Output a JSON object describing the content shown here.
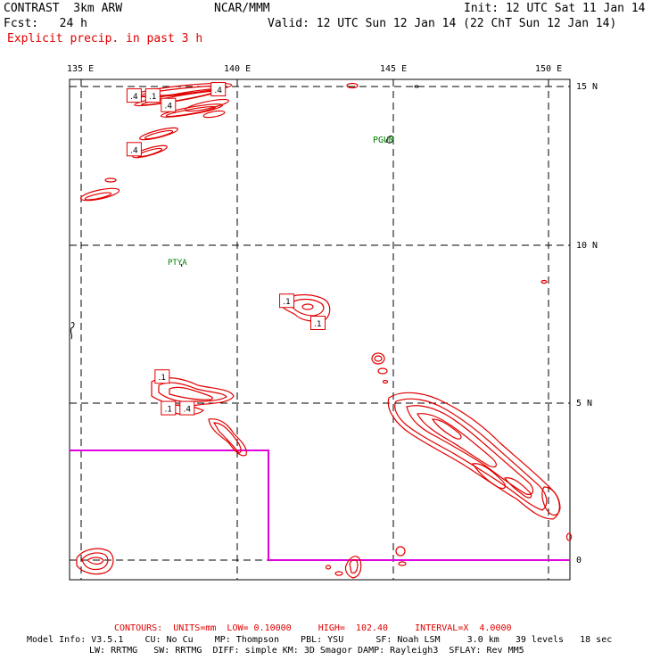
{
  "header": {
    "title": "CONTRAST  3km ARW",
    "source": "NCAR/MMM",
    "init": "Init: 12 UTC Sat 11 Jan 14",
    "fcst": "Fcst:   24 h",
    "valid": "Valid: 12 UTC Sun 12 Jan 14 (22 ChT Sun 12 Jan 14)",
    "field": "Explicit precip. in past 3 h"
  },
  "map": {
    "lon_labels": [
      "135 E",
      "140 E",
      "145 E",
      "150 E"
    ],
    "lat_labels": [
      "15 N",
      "10 N",
      "5 N",
      "0"
    ],
    "lon_range": [
      134.6,
      150.9
    ],
    "lat_range": [
      -0.6,
      15.2
    ],
    "station_labels": [
      {
        "text": "PGUM",
        "lon": 144.8,
        "lat": 13.5
      },
      {
        "text": "PTYA",
        "lon": 137.7,
        "lat": 9.5
      }
    ],
    "contour_value_labels": [
      {
        "text": ".4",
        "lon": 136.7,
        "lat": 14.7
      },
      {
        "text": ".1",
        "lon": 137.3,
        "lat": 14.7
      },
      {
        "text": ".4",
        "lon": 139.4,
        "lat": 14.9
      },
      {
        "text": ".4",
        "lon": 137.8,
        "lat": 14.4
      },
      {
        "text": ".4",
        "lon": 136.7,
        "lat": 13.0
      },
      {
        "text": ".1",
        "lon": 141.6,
        "lat": 8.2
      },
      {
        "text": ".1",
        "lon": 142.6,
        "lat": 7.5
      },
      {
        "text": ".1",
        "lon": 137.6,
        "lat": 5.8
      },
      {
        "text": ".1",
        "lon": 137.8,
        "lat": 4.8
      },
      {
        "text": ".4",
        "lon": 138.4,
        "lat": 4.8
      }
    ],
    "contour_color": "#e00000",
    "boundary_color": "#e000e0",
    "station_color": "#008000"
  },
  "footer": {
    "contours_line": "CONTOURS:  UNITS=mm  LOW= 0.10000     HIGH=  102.40     INTERVAL=X  4.0000",
    "model_line1": "Model Info: V3.5.1    CU: No Cu    MP: Thompson    PBL: YSU      SF: Noah LSM     3.0 km   39 levels   18 sec",
    "model_line2": "LW: RRTMG   SW: RRTMG  DIFF: simple KM: 3D Smagor DAMP: Rayleigh3  SFLAY: Rev MM5"
  }
}
